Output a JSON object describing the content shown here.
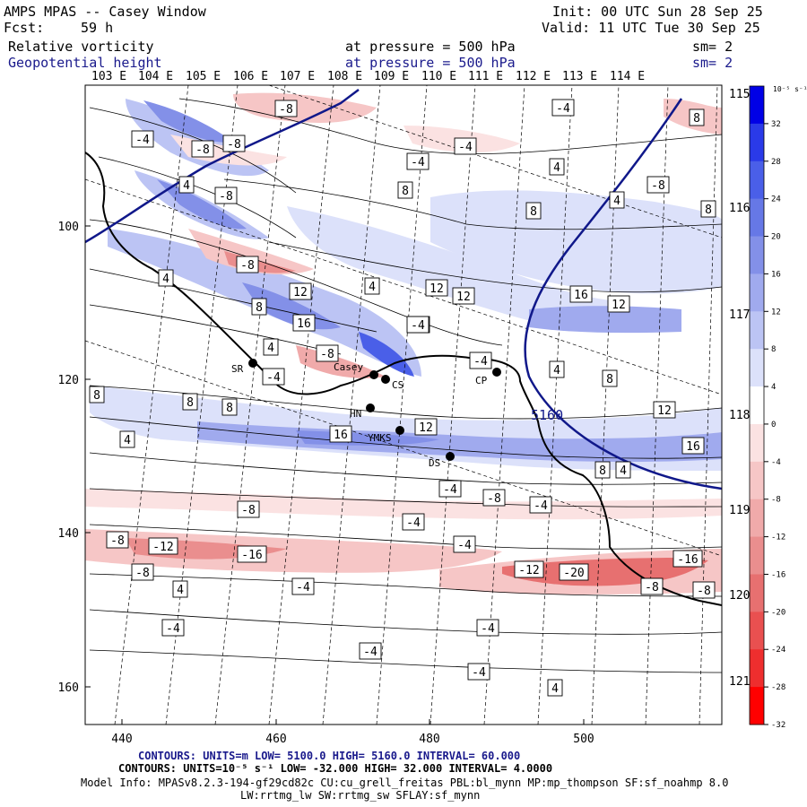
{
  "header": {
    "title": "AMPS MPAS -- Casey Window",
    "init_label": "Init: 00 UTC Sun 28 Sep 25",
    "fcst_label": "Fcst:",
    "fcst_hours": "59 h",
    "valid_label": "Valid: 11 UTC Tue 30 Sep 25",
    "field1_name": "Relative vorticity",
    "field1_level": "at pressure =  500 hPa",
    "field1_smooth": "sm= 2",
    "field2_name": "Geopotential height",
    "field2_level": "at pressure =  500 hPa",
    "field2_smooth": "sm= 2"
  },
  "map": {
    "top_lon_labels": [
      "103 E",
      "104 E",
      "105 E",
      "106 E",
      "107 E",
      "108 E",
      "109 E",
      "110 E",
      "111 E",
      "112 E",
      "113 E",
      "114 E"
    ],
    "right_lon_labels": [
      "115 E",
      "116 E",
      "117 E",
      "118 E",
      "119 E",
      "120 E",
      "121 E"
    ],
    "left_axis_labels": [
      "100",
      "120",
      "140",
      "160"
    ],
    "bottom_axis_labels": [
      "440",
      "460",
      "480",
      "500"
    ],
    "stations": [
      {
        "code": "SR"
      },
      {
        "code": "Casey"
      },
      {
        "code": "CS"
      },
      {
        "code": "CP"
      },
      {
        "code": "HN"
      },
      {
        "code": "YMKS"
      },
      {
        "code": "DS"
      }
    ],
    "contour_labels": [
      "-8",
      "-4",
      "-8",
      "-8",
      "-4",
      "-4",
      "8",
      "4",
      "-8",
      "-8",
      "-4",
      "4",
      "8",
      "8",
      "4",
      "8",
      "-8",
      "4",
      "12",
      "-8",
      "4",
      "12",
      "12",
      "-4",
      "16",
      "8",
      "16",
      "12",
      "-8",
      "-4",
      "4",
      "4",
      "8",
      "-4",
      "8",
      "8",
      "8",
      "4",
      "12",
      "16",
      "16",
      "12",
      "8",
      "4",
      "-4",
      "-8",
      "-4",
      "-8",
      "-4",
      "-4",
      "-12",
      "-16",
      "-8",
      "-8",
      "-12",
      "-20",
      "-16",
      "-8",
      "-8",
      "4",
      "-4",
      "-4",
      "-4",
      "-4",
      "-4",
      "4"
    ],
    "height_label": "5160"
  },
  "colorbar": {
    "unit_label": "10⁻⁵ s⁻¹",
    "tick_labels": [
      "32",
      "28",
      "24",
      "20",
      "16",
      "12",
      "8",
      "4",
      "0",
      "-4",
      "-8",
      "-12",
      "-16",
      "-20",
      "-24",
      "-28",
      "-32"
    ],
    "colors": [
      "#0000e6",
      "#2a3ae8",
      "#4a5fe8",
      "#6678e6",
      "#8390e8",
      "#a0aaee",
      "#bcc4f4",
      "#dce1fa",
      "#ffffff",
      "#fbe2e2",
      "#f6c6c6",
      "#f0aaaa",
      "#ea8e8e",
      "#e77070",
      "#e95050",
      "#ee2e2e",
      "#ff0000"
    ]
  },
  "footer": {
    "contours1": "CONTOURS:  UNITS=m  LOW=  5100.0         HIGH=  5160.0        INTERVAL=  60.000",
    "contours2": "CONTOURS:  UNITS=10⁻⁵ s⁻¹  LOW=  -32.000        HIGH=  32.000        INTERVAL=   4.0000",
    "model_info": "Model Info: MPASv8.2.3-194-gf29cd82c CU:cu_grell_freitas PBL:bl_mynn MP:mp_thompson SF:sf_noahmp 8.0",
    "model_info2": "LW:rrtmg_lw SW:rrtmg_sw SFLAY:sf_mynn"
  },
  "colors": {
    "navy": "#1a1a8c",
    "map_blue": "#10188a"
  }
}
